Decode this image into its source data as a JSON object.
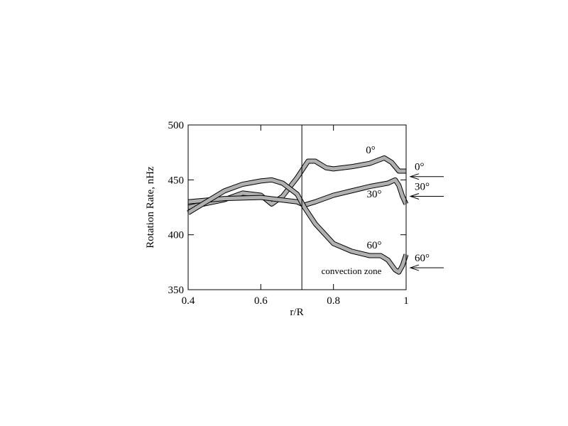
{
  "chart_data": {
    "type": "line",
    "xlabel": "r/R",
    "ylabel": "Rotation Rate, nHz",
    "xlim": [
      0.4,
      1
    ],
    "ylim": [
      350,
      500
    ],
    "xticks": [
      0.4,
      0.6,
      0.8,
      1
    ],
    "yticks": [
      350,
      400,
      450,
      500
    ],
    "series": [
      {
        "name": "0°",
        "color": "#b0b0b0",
        "x": [
          0.4,
          0.5,
          0.55,
          0.6,
          0.63,
          0.66,
          0.7,
          0.73,
          0.75,
          0.78,
          0.8,
          0.85,
          0.9,
          0.94,
          0.96,
          0.98,
          1.0
        ],
        "values": [
          425,
          432,
          438,
          436,
          428,
          435,
          452,
          467,
          467,
          461,
          460,
          462,
          465,
          470,
          466,
          458,
          458
        ]
      },
      {
        "name": "30°",
        "color": "#b0b0b0",
        "x": [
          0.4,
          0.5,
          0.6,
          0.7,
          0.72,
          0.75,
          0.8,
          0.85,
          0.9,
          0.95,
          0.97,
          0.98,
          0.99,
          1.0
        ],
        "values": [
          430,
          433,
          434,
          430,
          427,
          430,
          436,
          440,
          444,
          447,
          450,
          445,
          435,
          428
        ]
      },
      {
        "name": "60°",
        "color": "#b0b0b0",
        "x": [
          0.4,
          0.45,
          0.5,
          0.55,
          0.6,
          0.63,
          0.66,
          0.7,
          0.72,
          0.75,
          0.8,
          0.85,
          0.9,
          0.93,
          0.95,
          0.97,
          0.98,
          0.99,
          1.0
        ],
        "values": [
          420,
          430,
          440,
          446,
          449,
          450,
          447,
          437,
          425,
          410,
          392,
          385,
          381,
          381,
          377,
          368,
          366,
          372,
          382
        ]
      }
    ],
    "vline": 0.713,
    "annotation": "convection zone",
    "surface": [
      {
        "label": "0°",
        "value": 453
      },
      {
        "label": "30°",
        "value": 435
      },
      {
        "label": "60°",
        "value": 370
      }
    ]
  }
}
